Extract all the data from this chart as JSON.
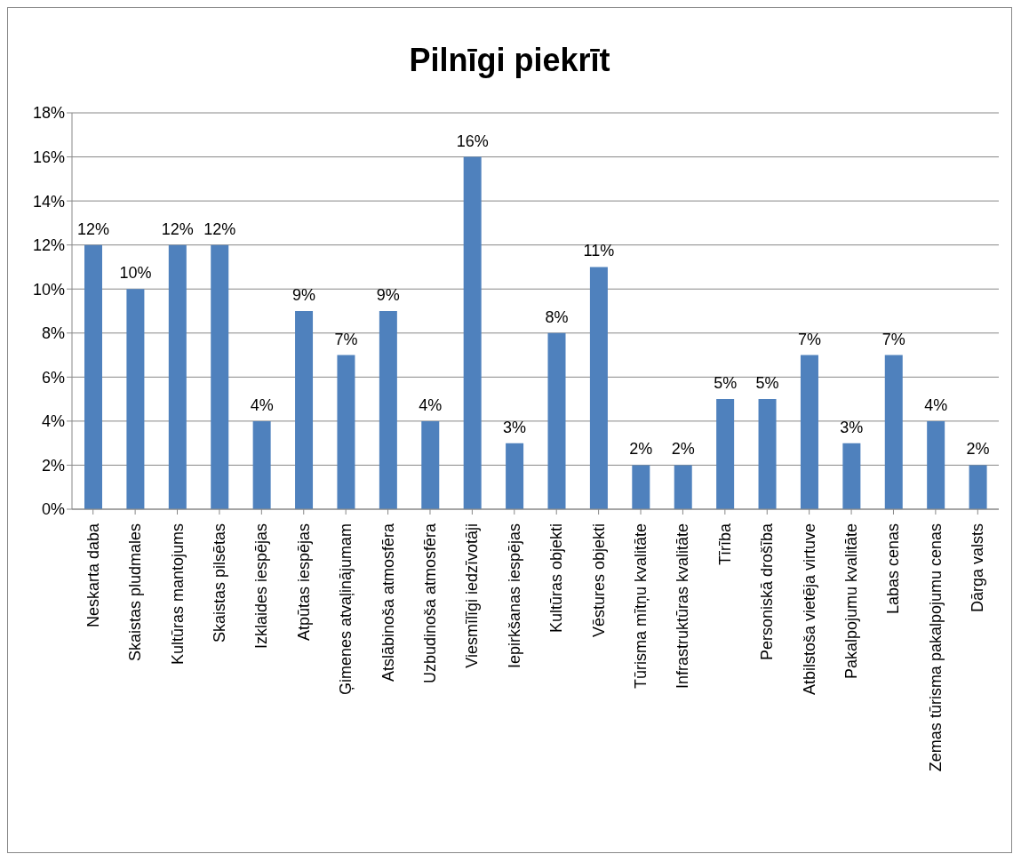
{
  "chart_data": {
    "type": "bar",
    "title": "Pilnīgi piekrīt",
    "categories": [
      "Neskarta daba",
      "Skaistas pludmales",
      "Kultūras mantojums",
      "Skaistas pilsētas",
      "Izklaides iespējas",
      "Atpūtas iespējas",
      "Ģimenes atvaļinājumam",
      "Atslābinoša atmosfēra",
      "Uzbudinoša atmosfēra",
      "Viesmīlīgi iedzīvotāji",
      "Iepirkšanas iespējas",
      "Kultūras objekti",
      "Vēstures objekti",
      "Tūrisma mītņu kvalitāte",
      "Infrastruktūras kvalitāte",
      "Tīrība",
      "Personiskā drošība",
      "Atbilstoša vietēja virtuve",
      "Pakalpojumu kvalitāte",
      "Labas cenas",
      "Zemas tūrisma pakalpojumu cenas",
      "Dārga valsts"
    ],
    "values": [
      12,
      10,
      12,
      12,
      4,
      9,
      7,
      9,
      4,
      16,
      3,
      8,
      11,
      2,
      2,
      5,
      5,
      7,
      3,
      7,
      4,
      2
    ],
    "value_labels": [
      "12%",
      "10%",
      "12%",
      "12%",
      "4%",
      "9%",
      "7%",
      "9%",
      "4%",
      "16%",
      "3%",
      "8%",
      "11%",
      "2%",
      "2%",
      "5%",
      "5%",
      "7%",
      "3%",
      "7%",
      "4%",
      "2%"
    ],
    "color": "#4f81bd",
    "ylim": [
      0,
      18
    ],
    "yticks": [
      {
        "value": 0,
        "label": "0%"
      },
      {
        "value": 2,
        "label": "2%"
      },
      {
        "value": 4,
        "label": "4%"
      },
      {
        "value": 6,
        "label": "6%"
      },
      {
        "value": 8,
        "label": "8%"
      },
      {
        "value": 10,
        "label": "10%"
      },
      {
        "value": 12,
        "label": "12%"
      },
      {
        "value": 14,
        "label": "14%"
      },
      {
        "value": 16,
        "label": "16%"
      },
      {
        "value": 18,
        "label": "18%"
      }
    ],
    "grid": "y",
    "legend": false
  }
}
